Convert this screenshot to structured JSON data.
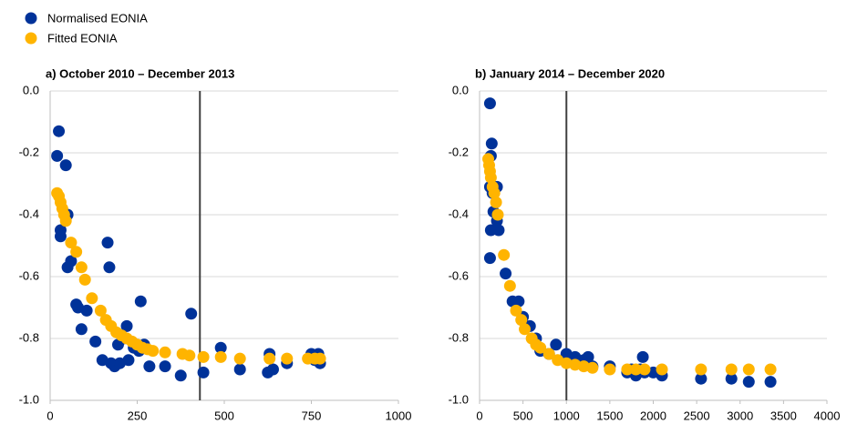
{
  "chart_data": [
    {
      "type": "scatter",
      "title": "a) October 2010 – December 2013",
      "xlim": [
        0,
        1000
      ],
      "xticks": [
        0,
        250,
        500,
        750,
        1000
      ],
      "ylim": [
        -1.0,
        0.0
      ],
      "yticks": [
        {
          "value": 0,
          "label": "0.0"
        },
        -0.2,
        -0.4,
        -0.6,
        -0.8,
        {
          "value": -1.0,
          "label": "-1.0"
        }
      ],
      "grid": true,
      "vline": 430,
      "series": [
        {
          "name": "Normalised EONIA",
          "color": "#003299",
          "x": [
            20,
            25,
            30,
            30,
            45,
            50,
            50,
            60,
            75,
            80,
            90,
            105,
            130,
            150,
            165,
            170,
            175,
            185,
            200,
            195,
            210,
            220,
            225,
            240,
            255,
            260,
            270,
            285,
            330,
            375,
            405,
            440,
            490,
            545,
            625,
            630,
            640,
            680,
            750,
            760,
            770,
            775
          ],
          "values": [
            -0.21,
            -0.13,
            -0.45,
            -0.47,
            -0.24,
            -0.4,
            -0.57,
            -0.55,
            -0.69,
            -0.7,
            -0.77,
            -0.71,
            -0.81,
            -0.87,
            -0.49,
            -0.57,
            -0.88,
            -0.89,
            -0.88,
            -0.82,
            -0.8,
            -0.76,
            -0.87,
            -0.83,
            -0.84,
            -0.68,
            -0.82,
            -0.89,
            -0.89,
            -0.92,
            -0.72,
            -0.91,
            -0.83,
            -0.9,
            -0.91,
            -0.85,
            -0.9,
            -0.88,
            -0.85,
            -0.87,
            -0.85,
            -0.88
          ]
        },
        {
          "name": "Fitted EONIA",
          "color": "#FFB400",
          "x": [
            20,
            25,
            30,
            35,
            40,
            45,
            60,
            75,
            90,
            100,
            120,
            145,
            160,
            175,
            190,
            205,
            220,
            235,
            250,
            265,
            280,
            295,
            330,
            380,
            400,
            440,
            490,
            545,
            630,
            680,
            740,
            760,
            775
          ],
          "values": [
            -0.33,
            -0.34,
            -0.36,
            -0.38,
            -0.4,
            -0.42,
            -0.49,
            -0.52,
            -0.57,
            -0.61,
            -0.67,
            -0.71,
            -0.74,
            -0.76,
            -0.78,
            -0.79,
            -0.8,
            -0.81,
            -0.82,
            -0.83,
            -0.835,
            -0.84,
            -0.845,
            -0.85,
            -0.855,
            -0.86,
            -0.86,
            -0.865,
            -0.865,
            -0.865,
            -0.865,
            -0.865,
            -0.865
          ]
        }
      ]
    },
    {
      "type": "scatter",
      "title": "b) January 2014 – December 2020",
      "xlim": [
        0,
        4000
      ],
      "xticks": [
        0,
        500,
        1000,
        1500,
        2000,
        2500,
        3000,
        3500,
        4000
      ],
      "ylim": [
        -1.0,
        0.0
      ],
      "yticks": [
        {
          "value": 0,
          "label": "0.0"
        },
        -0.2,
        -0.4,
        -0.6,
        -0.8,
        {
          "value": -1.0,
          "label": "-1.0"
        }
      ],
      "grid": true,
      "vline": 1000,
      "series": [
        {
          "color": "#003299",
          "x": [
            120,
            140,
            130,
            120,
            150,
            130,
            160,
            200,
            200,
            220,
            120,
            300,
            380,
            450,
            500,
            580,
            650,
            700,
            800,
            880,
            1000,
            1100,
            1200,
            1250,
            1300,
            1500,
            1700,
            1750,
            1800,
            1850,
            1880,
            1900,
            2000,
            2100,
            2550,
            2900,
            3100,
            3350
          ],
          "values": [
            -0.04,
            -0.17,
            -0.21,
            -0.31,
            -0.33,
            -0.45,
            -0.39,
            -0.31,
            -0.42,
            -0.45,
            -0.54,
            -0.59,
            -0.68,
            -0.68,
            -0.73,
            -0.76,
            -0.8,
            -0.84,
            -0.85,
            -0.82,
            -0.85,
            -0.86,
            -0.87,
            -0.86,
            -0.89,
            -0.89,
            -0.91,
            -0.9,
            -0.92,
            -0.9,
            -0.86,
            -0.91,
            -0.91,
            -0.92,
            -0.93,
            -0.93,
            -0.94,
            -0.94
          ]
        },
        {
          "color": "#FFB400",
          "x": [
            100,
            110,
            120,
            130,
            150,
            170,
            190,
            210,
            280,
            350,
            420,
            480,
            520,
            600,
            650,
            700,
            800,
            900,
            1000,
            1100,
            1200,
            1300,
            1500,
            1700,
            1800,
            1900,
            2100,
            2550,
            2900,
            3100,
            3350
          ],
          "values": [
            -0.22,
            -0.24,
            -0.26,
            -0.28,
            -0.31,
            -0.33,
            -0.36,
            -0.4,
            -0.53,
            -0.63,
            -0.71,
            -0.74,
            -0.77,
            -0.8,
            -0.82,
            -0.83,
            -0.85,
            -0.87,
            -0.88,
            -0.885,
            -0.89,
            -0.895,
            -0.9,
            -0.9,
            -0.9,
            -0.9,
            -0.9,
            -0.9,
            -0.9,
            -0.9,
            -0.9
          ]
        }
      ]
    }
  ]
}
